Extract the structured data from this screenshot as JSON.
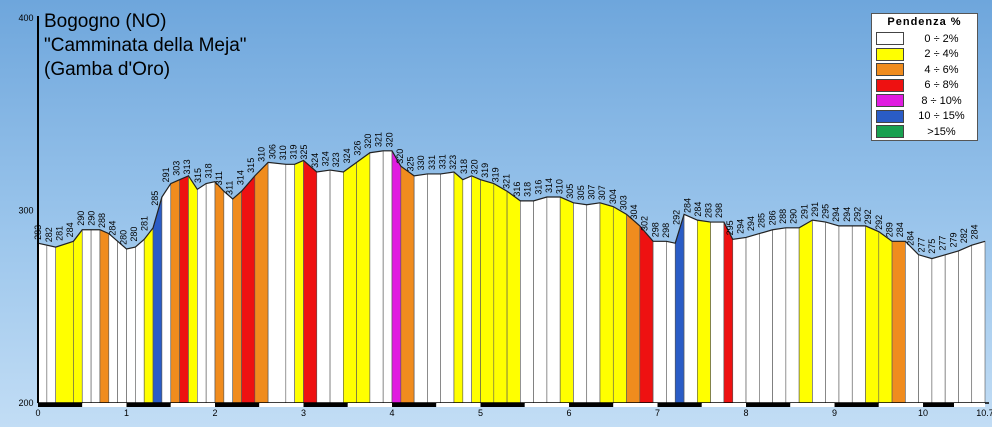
{
  "chart_data": {
    "type": "area",
    "title": "Bogogno (NO)",
    "subtitle": "\"Camminata della Meja\"",
    "subtitle2": "(Gamba d'Oro)",
    "ylim": [
      200,
      400
    ],
    "y_ticks": [
      "200",
      "300",
      "400"
    ],
    "xlim": [
      0,
      10.7
    ],
    "x_ticks": [
      "0",
      "1",
      "2",
      "3",
      "4",
      "5",
      "6",
      "7",
      "8",
      "9",
      "10",
      "10.7"
    ],
    "legend": {
      "title": "Pendenza %",
      "placement": "top-right",
      "items": [
        {
          "label": "0 ÷ 2%",
          "color": "#ffffff"
        },
        {
          "label": "2 ÷ 4%",
          "color": "#ffff00"
        },
        {
          "label": "4 ÷ 6%",
          "color": "#f08c1e"
        },
        {
          "label": "6 ÷ 8%",
          "color": "#ee1111"
        },
        {
          "label": "8 ÷ 10%",
          "color": "#e01ce0"
        },
        {
          "label": "10 ÷ 15%",
          "color": "#2a5cc6"
        },
        {
          "label": ">15%",
          "color": "#18a050"
        }
      ]
    },
    "profile": [
      {
        "x": 0.0,
        "y": 283
      },
      {
        "x": 0.2,
        "y": 281
      },
      {
        "x": 0.4,
        "y": 284
      },
      {
        "x": 0.5,
        "y": 290
      },
      {
        "x": 0.7,
        "y": 290
      },
      {
        "x": 0.8,
        "y": 288
      },
      {
        "x": 0.9,
        "y": 284
      },
      {
        "x": 1.0,
        "y": 280
      },
      {
        "x": 1.1,
        "y": 281
      },
      {
        "x": 1.2,
        "y": 285
      },
      {
        "x": 1.3,
        "y": 291
      },
      {
        "x": 1.4,
        "y": 307
      },
      {
        "x": 1.5,
        "y": 314
      },
      {
        "x": 1.6,
        "y": 316
      },
      {
        "x": 1.7,
        "y": 318
      },
      {
        "x": 1.8,
        "y": 311
      },
      {
        "x": 1.9,
        "y": 314
      },
      {
        "x": 2.0,
        "y": 315
      },
      {
        "x": 2.1,
        "y": 310
      },
      {
        "x": 2.2,
        "y": 306
      },
      {
        "x": 2.3,
        "y": 310
      },
      {
        "x": 2.45,
        "y": 318
      },
      {
        "x": 2.6,
        "y": 325
      },
      {
        "x": 2.8,
        "y": 324
      },
      {
        "x": 2.9,
        "y": 324
      },
      {
        "x": 3.0,
        "y": 326
      },
      {
        "x": 3.15,
        "y": 320
      },
      {
        "x": 3.3,
        "y": 321
      },
      {
        "x": 3.45,
        "y": 320
      },
      {
        "x": 3.6,
        "y": 325
      },
      {
        "x": 3.75,
        "y": 330
      },
      {
        "x": 3.9,
        "y": 331
      },
      {
        "x": 4.0,
        "y": 331
      },
      {
        "x": 4.1,
        "y": 323
      },
      {
        "x": 4.25,
        "y": 318
      },
      {
        "x": 4.4,
        "y": 319
      },
      {
        "x": 4.55,
        "y": 319
      },
      {
        "x": 4.7,
        "y": 320
      },
      {
        "x": 4.8,
        "y": 316
      },
      {
        "x": 4.9,
        "y": 318
      },
      {
        "x": 5.0,
        "y": 316
      },
      {
        "x": 5.15,
        "y": 314
      },
      {
        "x": 5.3,
        "y": 310
      },
      {
        "x": 5.45,
        "y": 305
      },
      {
        "x": 5.6,
        "y": 305
      },
      {
        "x": 5.75,
        "y": 307
      },
      {
        "x": 5.9,
        "y": 307
      },
      {
        "x": 6.05,
        "y": 304
      },
      {
        "x": 6.2,
        "y": 303
      },
      {
        "x": 6.35,
        "y": 304
      },
      {
        "x": 6.5,
        "y": 302
      },
      {
        "x": 6.65,
        "y": 298
      },
      {
        "x": 6.8,
        "y": 292
      },
      {
        "x": 6.95,
        "y": 284
      },
      {
        "x": 7.1,
        "y": 284
      },
      {
        "x": 7.2,
        "y": 283
      },
      {
        "x": 7.3,
        "y": 298
      },
      {
        "x": 7.45,
        "y": 295
      },
      {
        "x": 7.6,
        "y": 294
      },
      {
        "x": 7.75,
        "y": 294
      },
      {
        "x": 7.85,
        "y": 285
      },
      {
        "x": 8.0,
        "y": 286
      },
      {
        "x": 8.15,
        "y": 288
      },
      {
        "x": 8.3,
        "y": 290
      },
      {
        "x": 8.45,
        "y": 291
      },
      {
        "x": 8.6,
        "y": 291
      },
      {
        "x": 8.75,
        "y": 295
      },
      {
        "x": 8.9,
        "y": 294
      },
      {
        "x": 9.05,
        "y": 292
      },
      {
        "x": 9.2,
        "y": 292
      },
      {
        "x": 9.35,
        "y": 292
      },
      {
        "x": 9.5,
        "y": 289
      },
      {
        "x": 9.65,
        "y": 284
      },
      {
        "x": 9.8,
        "y": 284
      },
      {
        "x": 9.95,
        "y": 277
      },
      {
        "x": 10.1,
        "y": 275
      },
      {
        "x": 10.25,
        "y": 277
      },
      {
        "x": 10.4,
        "y": 279
      },
      {
        "x": 10.55,
        "y": 282
      },
      {
        "x": 10.7,
        "y": 284
      }
    ],
    "altitude_labels": [
      "283",
      "282",
      "281",
      "284",
      "290",
      "290",
      "288",
      "284",
      "280",
      "280",
      "281",
      "285",
      "291",
      "303",
      "313",
      "315",
      "318",
      "311",
      "311",
      "314",
      "315",
      "310",
      "306",
      "310",
      "319",
      "325",
      "324",
      "324",
      "323",
      "324",
      "326",
      "320",
      "321",
      "320",
      "320",
      "325",
      "330",
      "331",
      "331",
      "323",
      "318",
      "320",
      "319",
      "319",
      "321",
      "316",
      "318",
      "316",
      "314",
      "310",
      "305",
      "305",
      "307",
      "307",
      "304",
      "303",
      "304",
      "302",
      "298",
      "298",
      "292",
      "284",
      "284",
      "283",
      "298",
      "295",
      "294",
      "294",
      "285",
      "286",
      "288",
      "290",
      "291",
      "291",
      "295",
      "294",
      "294",
      "292",
      "292",
      "292",
      "289",
      "284",
      "284",
      "277",
      "275",
      "277",
      "279",
      "282",
      "284"
    ],
    "segments": [
      {
        "from": 0.0,
        "to": 0.1,
        "cls": 0
      },
      {
        "from": 0.1,
        "to": 0.2,
        "cls": 0
      },
      {
        "from": 0.2,
        "to": 0.4,
        "cls": 1
      },
      {
        "from": 0.4,
        "to": 0.5,
        "cls": 1
      },
      {
        "from": 0.5,
        "to": 0.6,
        "cls": 0
      },
      {
        "from": 0.6,
        "to": 0.7,
        "cls": 0
      },
      {
        "from": 0.7,
        "to": 0.8,
        "cls": 2
      },
      {
        "from": 0.8,
        "to": 0.9,
        "cls": 0
      },
      {
        "from": 0.9,
        "to": 1.0,
        "cls": 0
      },
      {
        "from": 1.0,
        "to": 1.1,
        "cls": 0
      },
      {
        "from": 1.1,
        "to": 1.2,
        "cls": 0
      },
      {
        "from": 1.2,
        "to": 1.3,
        "cls": 1
      },
      {
        "from": 1.3,
        "to": 1.4,
        "cls": 5
      },
      {
        "from": 1.4,
        "to": 1.5,
        "cls": 0
      },
      {
        "from": 1.5,
        "to": 1.6,
        "cls": 2
      },
      {
        "from": 1.6,
        "to": 1.7,
        "cls": 3
      },
      {
        "from": 1.7,
        "to": 1.8,
        "cls": 1
      },
      {
        "from": 1.8,
        "to": 1.9,
        "cls": 0
      },
      {
        "from": 1.9,
        "to": 2.0,
        "cls": 0
      },
      {
        "from": 2.0,
        "to": 2.1,
        "cls": 2
      },
      {
        "from": 2.1,
        "to": 2.2,
        "cls": 0
      },
      {
        "from": 2.2,
        "to": 2.3,
        "cls": 2
      },
      {
        "from": 2.3,
        "to": 2.45,
        "cls": 3
      },
      {
        "from": 2.45,
        "to": 2.6,
        "cls": 2
      },
      {
        "from": 2.6,
        "to": 2.8,
        "cls": 0
      },
      {
        "from": 2.8,
        "to": 2.9,
        "cls": 0
      },
      {
        "from": 2.9,
        "to": 3.0,
        "cls": 1
      },
      {
        "from": 3.0,
        "to": 3.15,
        "cls": 3
      },
      {
        "from": 3.15,
        "to": 3.3,
        "cls": 0
      },
      {
        "from": 3.3,
        "to": 3.45,
        "cls": 0
      },
      {
        "from": 3.45,
        "to": 3.6,
        "cls": 1
      },
      {
        "from": 3.6,
        "to": 3.75,
        "cls": 1
      },
      {
        "from": 3.75,
        "to": 3.9,
        "cls": 0
      },
      {
        "from": 3.9,
        "to": 4.0,
        "cls": 0
      },
      {
        "from": 4.0,
        "to": 4.1,
        "cls": 4
      },
      {
        "from": 4.1,
        "to": 4.25,
        "cls": 2
      },
      {
        "from": 4.25,
        "to": 4.4,
        "cls": 0
      },
      {
        "from": 4.4,
        "to": 4.55,
        "cls": 0
      },
      {
        "from": 4.55,
        "to": 4.7,
        "cls": 0
      },
      {
        "from": 4.7,
        "to": 4.8,
        "cls": 1
      },
      {
        "from": 4.8,
        "to": 4.9,
        "cls": 0
      },
      {
        "from": 4.9,
        "to": 5.0,
        "cls": 1
      },
      {
        "from": 5.0,
        "to": 5.15,
        "cls": 1
      },
      {
        "from": 5.15,
        "to": 5.3,
        "cls": 1
      },
      {
        "from": 5.3,
        "to": 5.45,
        "cls": 1
      },
      {
        "from": 5.45,
        "to": 5.6,
        "cls": 0
      },
      {
        "from": 5.6,
        "to": 5.75,
        "cls": 0
      },
      {
        "from": 5.75,
        "to": 5.9,
        "cls": 0
      },
      {
        "from": 5.9,
        "to": 6.05,
        "cls": 1
      },
      {
        "from": 6.05,
        "to": 6.2,
        "cls": 0
      },
      {
        "from": 6.2,
        "to": 6.35,
        "cls": 0
      },
      {
        "from": 6.35,
        "to": 6.5,
        "cls": 1
      },
      {
        "from": 6.5,
        "to": 6.65,
        "cls": 1
      },
      {
        "from": 6.65,
        "to": 6.8,
        "cls": 2
      },
      {
        "from": 6.8,
        "to": 6.95,
        "cls": 3
      },
      {
        "from": 6.95,
        "to": 7.1,
        "cls": 0
      },
      {
        "from": 7.1,
        "to": 7.2,
        "cls": 0
      },
      {
        "from": 7.2,
        "to": 7.3,
        "cls": 5
      },
      {
        "from": 7.3,
        "to": 7.45,
        "cls": 0
      },
      {
        "from": 7.45,
        "to": 7.6,
        "cls": 1
      },
      {
        "from": 7.6,
        "to": 7.75,
        "cls": 0
      },
      {
        "from": 7.75,
        "to": 7.85,
        "cls": 3
      },
      {
        "from": 7.85,
        "to": 8.0,
        "cls": 0
      },
      {
        "from": 8.0,
        "to": 8.15,
        "cls": 0
      },
      {
        "from": 8.15,
        "to": 8.3,
        "cls": 0
      },
      {
        "from": 8.3,
        "to": 8.45,
        "cls": 0
      },
      {
        "from": 8.45,
        "to": 8.6,
        "cls": 0
      },
      {
        "from": 8.6,
        "to": 8.75,
        "cls": 1
      },
      {
        "from": 8.75,
        "to": 8.9,
        "cls": 0
      },
      {
        "from": 8.9,
        "to": 9.05,
        "cls": 0
      },
      {
        "from": 9.05,
        "to": 9.2,
        "cls": 0
      },
      {
        "from": 9.2,
        "to": 9.35,
        "cls": 0
      },
      {
        "from": 9.35,
        "to": 9.5,
        "cls": 1
      },
      {
        "from": 9.5,
        "to": 9.65,
        "cls": 1
      },
      {
        "from": 9.65,
        "to": 9.8,
        "cls": 2
      },
      {
        "from": 9.8,
        "to": 9.95,
        "cls": 0
      },
      {
        "from": 9.95,
        "to": 10.1,
        "cls": 0
      },
      {
        "from": 10.1,
        "to": 10.25,
        "cls": 0
      },
      {
        "from": 10.25,
        "to": 10.4,
        "cls": 0
      },
      {
        "from": 10.4,
        "to": 10.55,
        "cls": 0
      },
      {
        "from": 10.55,
        "to": 10.7,
        "cls": 0
      }
    ]
  }
}
